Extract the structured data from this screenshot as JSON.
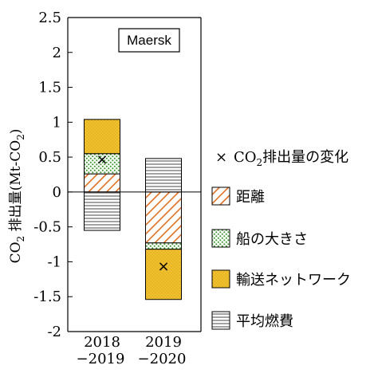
{
  "chart_data": {
    "type": "bar",
    "stacked": true,
    "title": "Maersk",
    "ylabel_main": "CO",
    "ylabel_sub": "2",
    "ylabel_rest": " 排出量(Mt-CO",
    "ylabel_unit_sub": "2",
    "ylabel_end": ")",
    "ylim": [
      -2,
      2.5
    ],
    "yticks": [
      2.5,
      2,
      1.5,
      1,
      0.5,
      0,
      -0.5,
      -1,
      -1.5,
      -2
    ],
    "ytick_labels": [
      "2.5",
      "2",
      "1.5",
      "1",
      "0.5",
      "0",
      "-0.5",
      "-1",
      "-1.5",
      "-2"
    ],
    "categories": [
      {
        "line1": "2018",
        "line2": "−2019"
      },
      {
        "line1": "2019",
        "line2": "−2020"
      }
    ],
    "series": [
      {
        "name": "距離",
        "pattern": "diag",
        "color": "#e07020",
        "values": [
          0.26,
          -0.73
        ]
      },
      {
        "name": "船の大きさ",
        "pattern": "dots",
        "color": "#3a9a2a",
        "values": [
          0.29,
          -0.09
        ]
      },
      {
        "name": "輸送ネットワーク",
        "pattern": "dense",
        "color": "#f2c12e",
        "values": [
          0.49,
          -0.72
        ]
      },
      {
        "name": "平均燃費",
        "pattern": "hlines",
        "color": "#666666",
        "values": [
          -0.55,
          0.48
        ]
      }
    ],
    "net_change": {
      "label_pre": "CO",
      "label_sub": "2",
      "label_post": "排出量の変化",
      "marker": "×",
      "values": [
        0.48,
        -1.05
      ]
    },
    "grid": false,
    "legend_position": "right"
  }
}
